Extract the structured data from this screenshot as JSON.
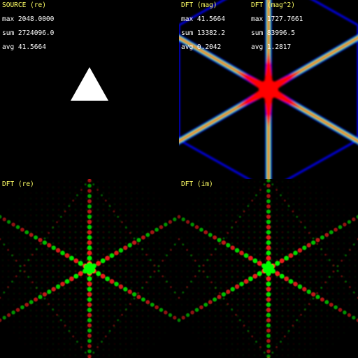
{
  "source": {
    "title": "SOURCE (re)",
    "max": "max 2048.0000",
    "sum": "sum 2724096.0",
    "avg": "avg 41.5664"
  },
  "mag": {
    "title": "DFT (mag)",
    "max": "max 41.5664",
    "sum": "sum 13382.2",
    "avg": "avg 0.2042"
  },
  "mag2": {
    "title": "DFT (mag^2)",
    "max": "max 1727.7661",
    "sum": "sum 83996.5",
    "avg": "avg 1.2817"
  },
  "re": {
    "title": "DFT (re)"
  },
  "im": {
    "title": "DFT (im)"
  },
  "colors": {
    "label": "#ffff66",
    "text": "#ffffff",
    "positive": "#00ff00",
    "negative": "#ff2020",
    "heat_high": "#ff0000",
    "heat_mid": "#00ff80",
    "heat_low": "#0000ff"
  }
}
